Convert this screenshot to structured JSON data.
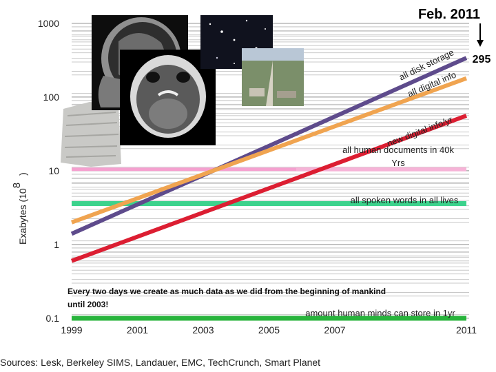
{
  "chart_data": {
    "type": "line",
    "ylabel": "Exabytes (10",
    "ylabel_exp": "8",
    "ylabel_close": ")",
    "scale_y": "log",
    "ylim": [
      0.1,
      1000
    ],
    "xlim": [
      1999,
      2011
    ],
    "x_ticks": [
      "1999",
      "2001",
      "2003",
      "2005",
      "2007",
      "2011"
    ],
    "y_ticks": [
      "1000",
      "100",
      "10",
      "1",
      "0.1"
    ],
    "grid": true,
    "series": [
      {
        "name": "all disk storage",
        "color": "#5e4b8c",
        "points": [
          [
            1999,
            1.4
          ],
          [
            2011,
            340
          ]
        ]
      },
      {
        "name": "all digital info",
        "color": "#f0a450",
        "points": [
          [
            1999,
            2.0
          ],
          [
            2011,
            180
          ]
        ]
      },
      {
        "name": "new digital info/yr",
        "color": "#dc1e32",
        "points": [
          [
            1999,
            0.6
          ],
          [
            2011,
            56
          ]
        ]
      }
    ],
    "reference_lines": [
      {
        "name": "all human documents in 40k Yrs",
        "color": "#f5a0cf",
        "value": 10.5
      },
      {
        "name": "all spoken words in all lives",
        "color": "#3cd28c",
        "value": 3.6
      },
      {
        "name": "amount human minds can store in 1yr",
        "color": "#28b43c",
        "value": 0.1
      }
    ],
    "annotations": {
      "date": "Feb. 2011",
      "value": "295",
      "statement": "Every two days we create as much data as we did from the beginning of mankind until 2003!"
    }
  },
  "sources": "Sources: Lesk, Berkeley SIMS, Landauer, EMC, TechCrunch, Smart Planet",
  "images": [
    "brain-mri-sagittal",
    "brain-ct-axial",
    "night-sky-stars",
    "highway-aerial",
    "clay-tablet"
  ]
}
